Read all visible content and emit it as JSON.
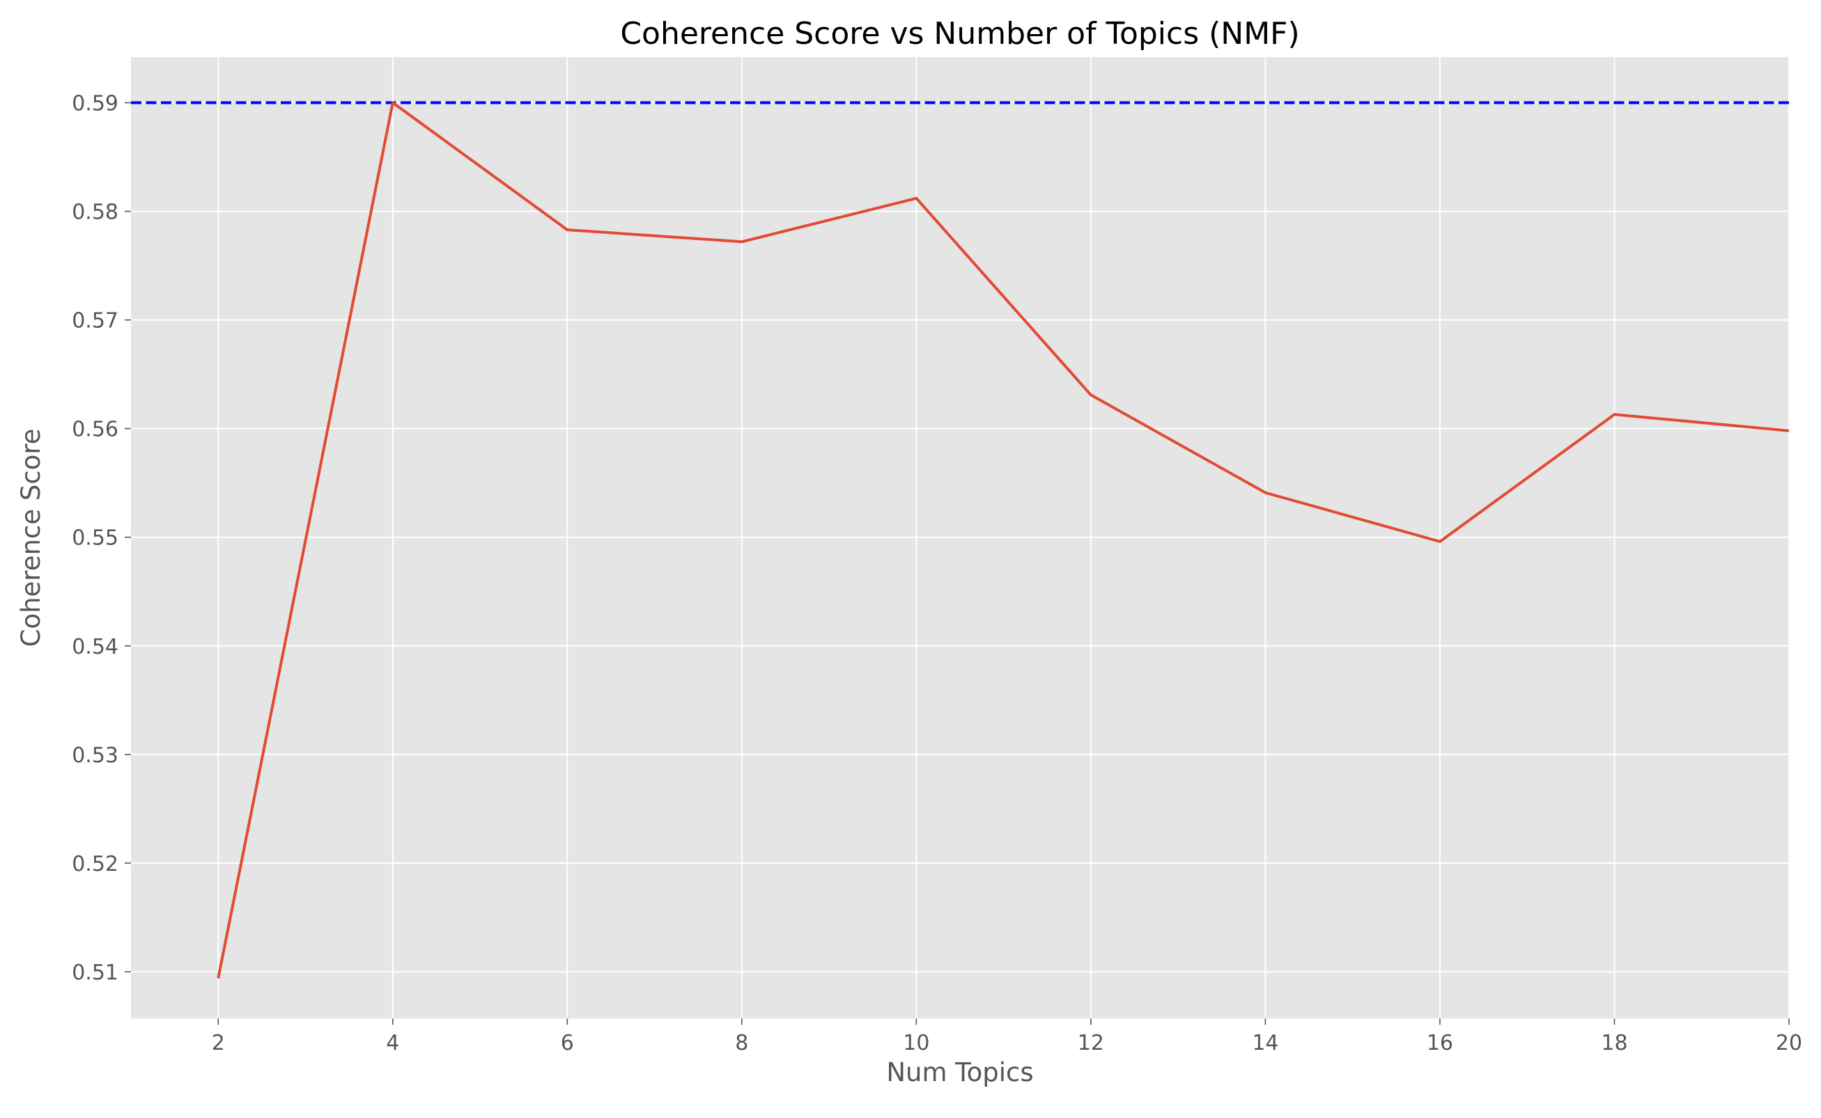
{
  "chart_data": {
    "type": "line",
    "title": "Coherence Score vs Number of Topics (NMF)",
    "xlabel": "Num Topics",
    "ylabel": "Coherence Score",
    "xlim": [
      1,
      20
    ],
    "ylim": [
      0.5057,
      0.5942
    ],
    "x_ticks": [
      2,
      4,
      6,
      8,
      10,
      12,
      14,
      16,
      18,
      20
    ],
    "x_tick_labels": [
      "2",
      "4",
      "6",
      "8",
      "10",
      "12",
      "14",
      "16",
      "18",
      "20"
    ],
    "y_ticks": [
      0.51,
      0.52,
      0.53,
      0.54,
      0.55,
      0.56,
      0.57,
      0.58,
      0.59
    ],
    "y_tick_labels": [
      "0.51",
      "0.52",
      "0.53",
      "0.54",
      "0.55",
      "0.56",
      "0.57",
      "0.58",
      "0.59"
    ],
    "grid": true,
    "legend": "none",
    "series": [
      {
        "x": [
          2,
          4,
          6,
          8,
          10,
          12,
          14,
          16,
          18,
          20
        ],
        "y": [
          0.5094,
          0.59,
          0.5783,
          0.5772,
          0.5812,
          0.5631,
          0.5541,
          0.5496,
          0.5613,
          0.5598
        ],
        "color": "#E24A33"
      }
    ],
    "reference_lines": [
      {
        "orientation": "horizontal",
        "y": 0.59,
        "style": "dashed",
        "color": "#0000FF"
      }
    ]
  },
  "colors": {
    "plot_background": "#E5E5E5",
    "grid": "#FFFFFF",
    "tick_text": "#555555",
    "title_text": "#000000"
  }
}
